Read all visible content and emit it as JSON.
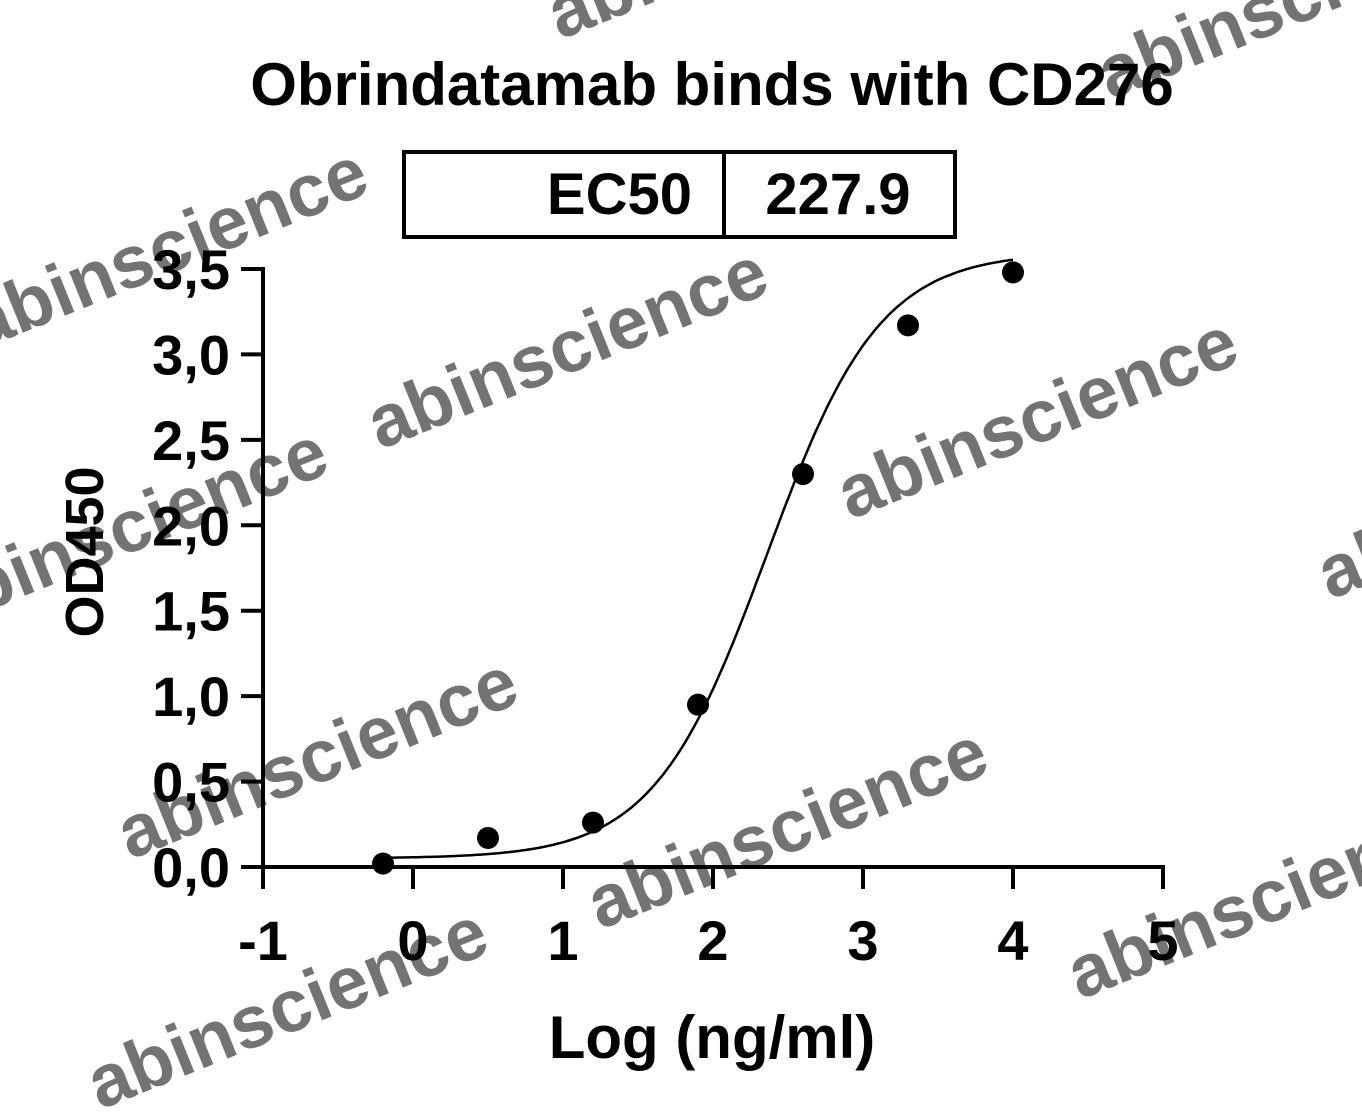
{
  "chart_data": {
    "type": "scatter",
    "title": "Obrindatamab binds with CD276",
    "xlabel": "Log (ng/ml)",
    "ylabel": "OD450",
    "xlim": [
      -1,
      5
    ],
    "ylim": [
      0,
      3.5
    ],
    "x_ticks": [
      "-1",
      "0",
      "1",
      "2",
      "3",
      "4",
      "5"
    ],
    "y_ticks": [
      "0,0",
      "0,5",
      "1,0",
      "1,5",
      "2,0",
      "2,5",
      "3,0",
      "3,5"
    ],
    "grid": false,
    "legend": "none",
    "ec50_table": {
      "label": "EC50",
      "value": "227.9"
    },
    "series": [
      {
        "x": [
          -0.2,
          0.5,
          1.2,
          1.9,
          2.6,
          3.3,
          4.0
        ],
        "values": [
          0.02,
          0.17,
          0.26,
          0.95,
          2.3,
          3.17,
          3.48
        ],
        "fit": "4PL sigmoid curve"
      }
    ],
    "watermark": "abinscience",
    "colors": {
      "points": "#000000",
      "curve": "#000000",
      "watermark": "#9a9a9a"
    }
  }
}
